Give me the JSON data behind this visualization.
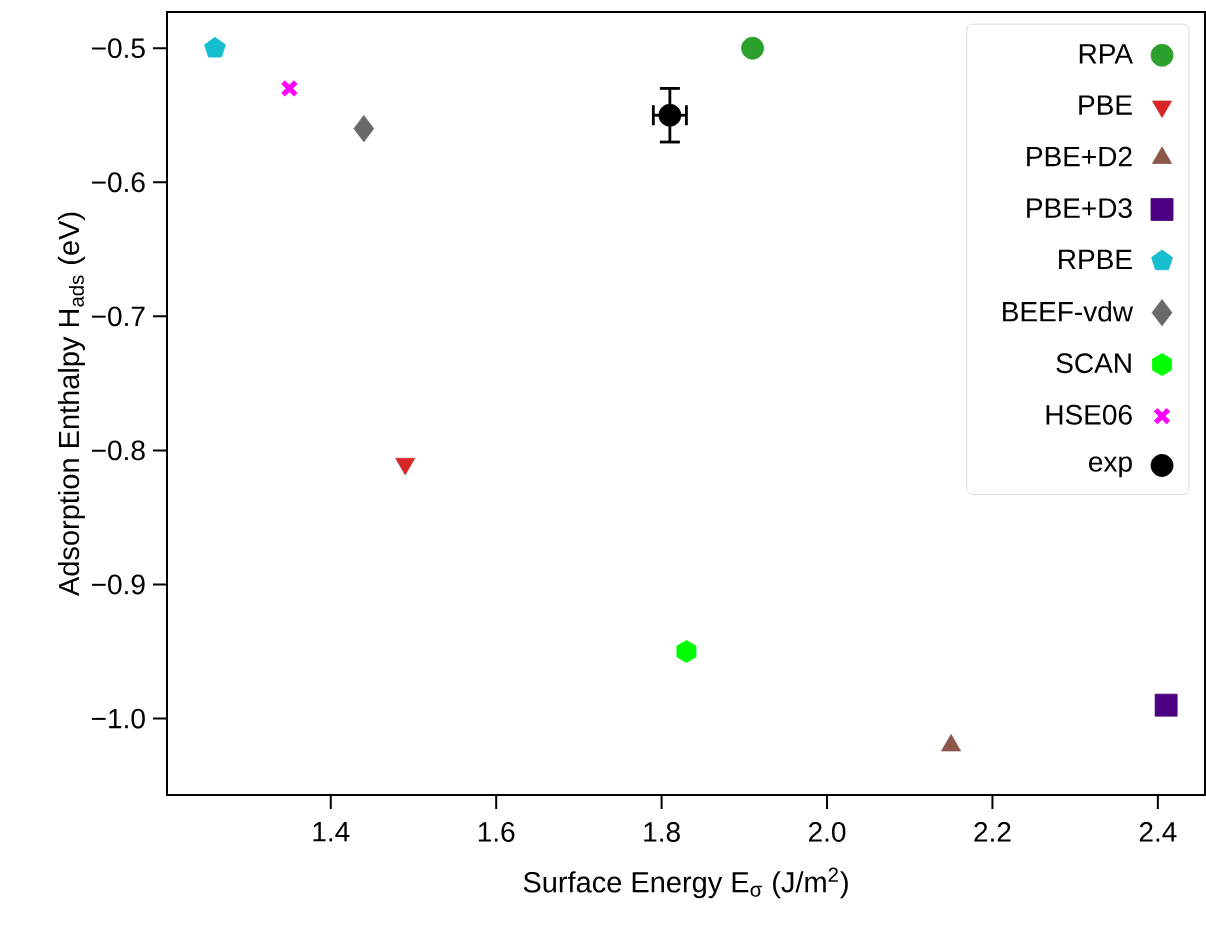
{
  "chart_data": {
    "type": "scatter",
    "xlabel": "Surface Energy E$_{σ}$ (J/m$^{2}$)",
    "ylabel": "Adsorption Enthalpy H$_{ads}$ (eV)",
    "xlim": [
      1.202,
      2.457
    ],
    "ylim": [
      -1.057,
      -0.473
    ],
    "xticks": [
      1.4,
      1.6,
      1.8,
      {
        "value": 2.0,
        "label": "2.0"
      },
      2.2,
      2.4
    ],
    "yticks": [
      {
        "value": -0.5,
        "label": "−0.5"
      },
      {
        "value": -0.6,
        "label": "−0.6"
      },
      {
        "value": -0.7,
        "label": "−0.7"
      },
      {
        "value": -0.8,
        "label": "−0.8"
      },
      {
        "value": -0.9,
        "label": "−0.9"
      },
      {
        "value": -1.0,
        "label": "−1.0"
      }
    ],
    "grid": false,
    "legend": "top right",
    "series": [
      {
        "name": "RPA",
        "color": "#2ca02c",
        "marker": "circle",
        "x": [
          1.91
        ],
        "values": [
          -0.5
        ]
      },
      {
        "name": "PBE",
        "color": "#d62728",
        "marker": "triangle_down",
        "x": [
          1.49
        ],
        "values": [
          -0.81
        ]
      },
      {
        "name": "PBE+D2",
        "color": "#8c564b",
        "marker": "triangle",
        "x": [
          2.15
        ],
        "values": [
          -1.02
        ]
      },
      {
        "name": "PBE+D3",
        "color": "#4b0082",
        "marker": "square",
        "x": [
          2.41
        ],
        "values": [
          -0.99
        ]
      },
      {
        "name": "RPBE",
        "color": "#17becf",
        "x": [
          1.26
        ],
        "values": [
          -0.5
        ]
      },
      {
        "name": "BEEF-vdw",
        "color": "#696969",
        "marker": "diamond",
        "x": [
          1.44
        ],
        "values": [
          -0.56
        ]
      },
      {
        "name": "SCAN",
        "color": "#00ff00",
        "x": [
          1.83
        ],
        "values": [
          -0.95
        ]
      },
      {
        "name": "HSE06",
        "color": "#ff00ff",
        "marker": "cross",
        "x": [
          1.35
        ],
        "values": [
          -0.53
        ]
      },
      {
        "name": "exp",
        "color": "#000000",
        "marker": "circle",
        "x": [
          1.81
        ],
        "values": [
          -0.55
        ],
        "errors": [
          0.02
        ],
        "xerrors": [
          0.02
        ]
      }
    ]
  }
}
